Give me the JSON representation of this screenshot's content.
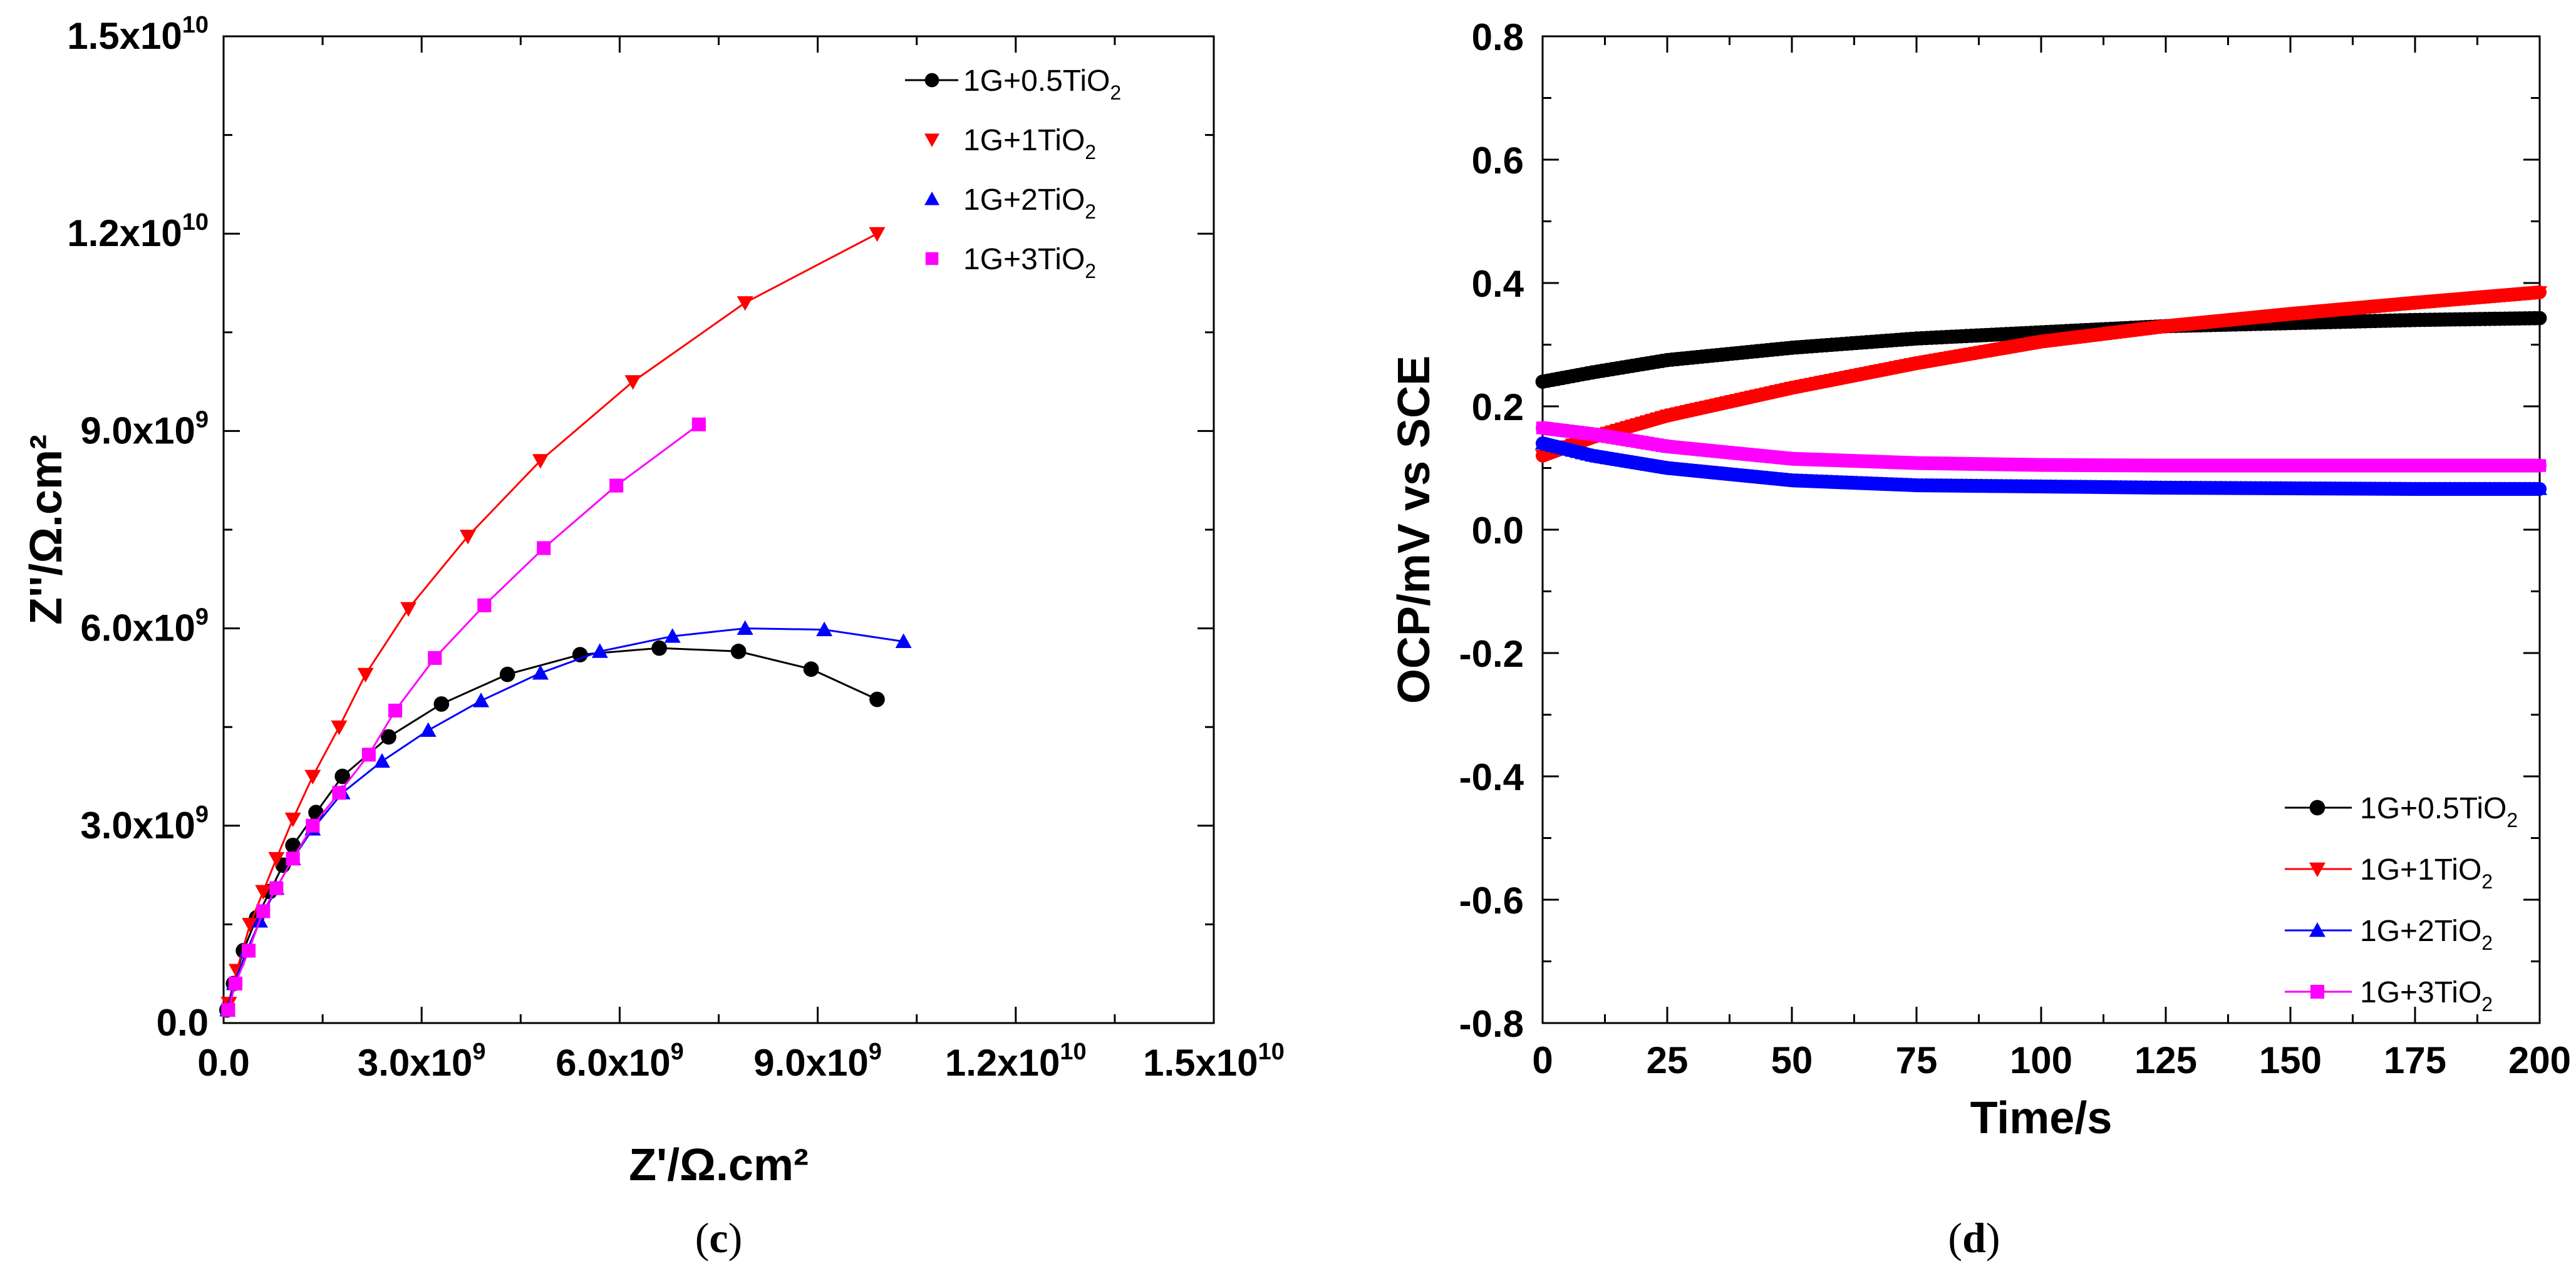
{
  "chart_data": [
    {
      "type": "line",
      "panel_label_prefix": "(",
      "panel_label": "c",
      "panel_label_suffix": ")",
      "title": "",
      "xlabel": "Z'/Ω.cm²",
      "ylabel": "Z''/Ω.cm²",
      "xlim": [
        0,
        15000000000
      ],
      "ylim": [
        0,
        15000000000
      ],
      "x_ticks": [
        {
          "value": 0,
          "mantissa": "0.0",
          "exp": ""
        },
        {
          "value": 3000000000,
          "mantissa": "3.0x10",
          "exp": "9"
        },
        {
          "value": 6000000000,
          "mantissa": "6.0x10",
          "exp": "9"
        },
        {
          "value": 9000000000,
          "mantissa": "9.0x10",
          "exp": "9"
        },
        {
          "value": 12000000000,
          "mantissa": "1.2x10",
          "exp": "10"
        },
        {
          "value": 15000000000,
          "mantissa": "1.5x10",
          "exp": "10"
        }
      ],
      "y_ticks": [
        {
          "value": 0,
          "mantissa": "0.0",
          "exp": ""
        },
        {
          "value": 3000000000,
          "mantissa": "3.0x10",
          "exp": "9"
        },
        {
          "value": 6000000000,
          "mantissa": "6.0x10",
          "exp": "9"
        },
        {
          "value": 9000000000,
          "mantissa": "9.0x10",
          "exp": "9"
        },
        {
          "value": 12000000000,
          "mantissa": "1.2x10",
          "exp": "10"
        },
        {
          "value": 15000000000,
          "mantissa": "1.5x10",
          "exp": "10"
        }
      ],
      "legend": "top-right",
      "series": [
        {
          "name": "1G+0.5TiO2",
          "label_main": "1G+0.5TiO",
          "label_sub": "2",
          "color": "#000000",
          "marker": "circle",
          "x": [
            50000000.0,
            150000000.0,
            300000000.0,
            500000000.0,
            700000000.0,
            900000000.0,
            1050000000.0,
            1400000000.0,
            1800000000.0,
            2500000000.0,
            3300000000.0,
            4300000000.0,
            5400000000.0,
            6600000000.0,
            7800000000.0,
            8900000000.0,
            9900000000.0
          ],
          "y": [
            200000000.0,
            600000000.0,
            1100000000.0,
            1600000000.0,
            2000000000.0,
            2400000000.0,
            2700000000.0,
            3200000000.0,
            3750000000.0,
            4350000000.0,
            4850000000.0,
            5300000000.0,
            5600000000.0,
            5700000000.0,
            5650000000.0,
            5380000000.0,
            4920000000.0
          ]
        },
        {
          "name": "1G+1TiO2",
          "label_main": "1G+1TiO",
          "label_sub": "2",
          "color": "#ff0000",
          "marker": "triangle-down",
          "x": [
            80000000.0,
            200000000.0,
            400000000.0,
            600000000.0,
            800000000.0,
            1050000000.0,
            1350000000.0,
            1750000000.0,
            2150000000.0,
            2800000000.0,
            3700000000.0,
            4800000000.0,
            6200000000.0,
            7900000000.0,
            9900000000.0
          ],
          "y": [
            300000000.0,
            800000000.0,
            1500000000.0,
            2000000000.0,
            2500000000.0,
            3100000000.0,
            3750000000.0,
            4500000000.0,
            5300000000.0,
            6300000000.0,
            7400000000.0,
            8550000000.0,
            9750000000.0,
            10950000000.0,
            12000000000.0
          ]
        },
        {
          "name": "1G+2TiO2",
          "label_main": "1G+2TiO",
          "label_sub": "2",
          "color": "#0000ff",
          "marker": "triangle-up",
          "x": [
            60000000.0,
            160000000.0,
            350000000.0,
            550000000.0,
            800000000.0,
            1050000000.0,
            1350000000.0,
            1800000000.0,
            2400000000.0,
            3100000000.0,
            3900000000.0,
            4800000000.0,
            5700000000.0,
            6800000000.0,
            7900000000.0,
            9100000000.0,
            10300000000.0
          ],
          "y": [
            200000000.0,
            600000000.0,
            1100000000.0,
            1550000000.0,
            2050000000.0,
            2500000000.0,
            2950000000.0,
            3500000000.0,
            3980000000.0,
            4450000000.0,
            4900000000.0,
            5320000000.0,
            5650000000.0,
            5880000000.0,
            6000000000.0,
            5980000000.0,
            5800000000.0
          ]
        },
        {
          "name": "1G+3TiO2",
          "label_main": "1G+3TiO",
          "label_sub": "2",
          "color": "#ff00ff",
          "marker": "square",
          "x": [
            70000000.0,
            180000000.0,
            380000000.0,
            600000000.0,
            800000000.0,
            1050000000.0,
            1350000000.0,
            1750000000.0,
            2200000000.0,
            2600000000.0,
            3200000000.0,
            3950000000.0,
            4850000000.0,
            5950000000.0,
            7200000000.0
          ],
          "y": [
            200000000.0,
            600000000.0,
            1100000000.0,
            1700000000.0,
            2050000000.0,
            2500000000.0,
            3000000000.0,
            3500000000.0,
            4080000000.0,
            4750000000.0,
            5550000000.0,
            6350000000.0,
            7220000000.0,
            8170000000.0,
            9100000000.0
          ]
        }
      ]
    },
    {
      "type": "line",
      "panel_label_prefix": "(",
      "panel_label": "d",
      "panel_label_suffix": ")",
      "title": "",
      "xlabel": "Time/s",
      "ylabel": "OCP/mV vs SCE",
      "xlim": [
        0,
        200
      ],
      "ylim": [
        -0.8,
        0.8
      ],
      "x_ticks": [
        {
          "value": 0,
          "label": "0"
        },
        {
          "value": 25,
          "label": "25"
        },
        {
          "value": 50,
          "label": "50"
        },
        {
          "value": 75,
          "label": "75"
        },
        {
          "value": 100,
          "label": "100"
        },
        {
          "value": 125,
          "label": "125"
        },
        {
          "value": 150,
          "label": "150"
        },
        {
          "value": 175,
          "label": "175"
        },
        {
          "value": 200,
          "label": "200"
        }
      ],
      "y_ticks": [
        {
          "value": 0.8,
          "label": "0.8"
        },
        {
          "value": 0.6,
          "label": "0.6"
        },
        {
          "value": 0.4,
          "label": "0.4"
        },
        {
          "value": 0.2,
          "label": "0.2"
        },
        {
          "value": 0.0,
          "label": "0.0"
        },
        {
          "value": -0.2,
          "label": "-0.2"
        },
        {
          "value": -0.4,
          "label": "-0.4"
        },
        {
          "value": -0.6,
          "label": "-0.6"
        },
        {
          "value": -0.8,
          "label": "-0.8"
        }
      ],
      "legend": "bottom-right",
      "series": [
        {
          "name": "1G+0.5TiO2",
          "label_main": "1G+0.5TiO",
          "label_sub": "2",
          "color": "#000000",
          "marker": "circle",
          "x": [
            0,
            10,
            25,
            50,
            75,
            100,
            125,
            150,
            175,
            200
          ],
          "y": [
            0.24,
            0.255,
            0.275,
            0.295,
            0.31,
            0.32,
            0.33,
            0.335,
            0.34,
            0.343
          ]
        },
        {
          "name": "1G+1TiO2",
          "label_main": "1G+1TiO",
          "label_sub": "2",
          "color": "#ff0000",
          "marker": "triangle-down",
          "x": [
            0,
            10,
            25,
            50,
            75,
            100,
            125,
            150,
            175,
            200
          ],
          "y": [
            0.12,
            0.15,
            0.185,
            0.23,
            0.27,
            0.305,
            0.33,
            0.35,
            0.368,
            0.385
          ]
        },
        {
          "name": "1G+2TiO2",
          "label_main": "1G+2TiO",
          "label_sub": "2",
          "color": "#0000ff",
          "marker": "triangle-up",
          "x": [
            0,
            10,
            25,
            50,
            75,
            100,
            125,
            150,
            175,
            200
          ],
          "y": [
            0.14,
            0.12,
            0.1,
            0.08,
            0.072,
            0.07,
            0.068,
            0.067,
            0.066,
            0.066
          ]
        },
        {
          "name": "1G+3TiO2",
          "label_main": "1G+3TiO",
          "label_sub": "2",
          "color": "#ff00ff",
          "marker": "square",
          "x": [
            0,
            10,
            25,
            50,
            75,
            100,
            125,
            150,
            175,
            200
          ],
          "y": [
            0.165,
            0.155,
            0.135,
            0.115,
            0.108,
            0.105,
            0.104,
            0.104,
            0.104,
            0.104
          ]
        }
      ]
    }
  ]
}
